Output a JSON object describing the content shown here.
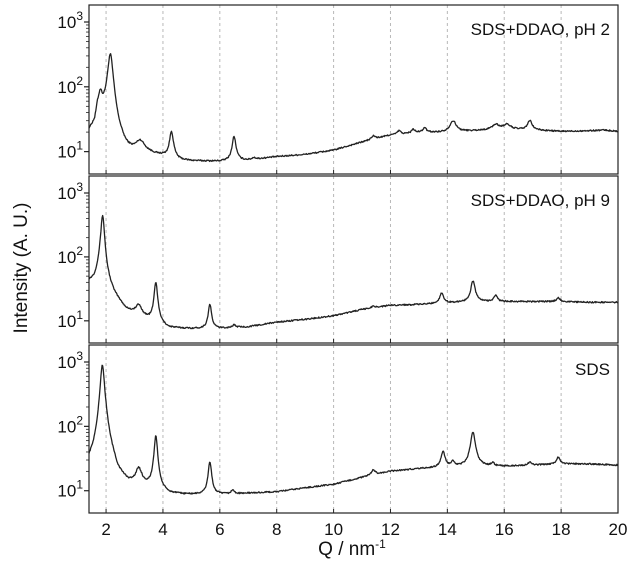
{
  "chart_data": {
    "type": "line",
    "xlabel": "Q / nm",
    "xlabel_superscript": "-1",
    "ylabel": "Intensity (A. U.)",
    "xlim": [
      1.4,
      20
    ],
    "xticks": [
      "2",
      "4",
      "6",
      "8",
      "10",
      "12",
      "14",
      "16",
      "18",
      "20"
    ],
    "y_scale": "log",
    "ylim": [
      6,
      1000
    ],
    "yticks": [
      {
        "base": "10",
        "exp": "1"
      },
      {
        "base": "10",
        "exp": "2"
      },
      {
        "base": "10",
        "exp": "3"
      }
    ],
    "grid": "vertical dashed at each x tick",
    "line_color": "#222222",
    "grid_color": "#b8b8b8",
    "panels": [
      {
        "label": "SDS+DDAO, pH 2",
        "baseline": [
          [
            1.4,
            18
          ],
          [
            1.6,
            22
          ],
          [
            1.7,
            40
          ],
          [
            2.0,
            30
          ],
          [
            2.4,
            9
          ],
          [
            2.7,
            7.2
          ],
          [
            3.5,
            8.3
          ],
          [
            4.0,
            8
          ],
          [
            4.6,
            7
          ],
          [
            5,
            6.9
          ],
          [
            6,
            6.9
          ],
          [
            7,
            7.3
          ],
          [
            8,
            8.3
          ],
          [
            9,
            9
          ],
          [
            10,
            10.5
          ],
          [
            11,
            14
          ],
          [
            12,
            18
          ],
          [
            13,
            19.5
          ],
          [
            14,
            20
          ],
          [
            15,
            21
          ],
          [
            16,
            22
          ],
          [
            17,
            21.5
          ],
          [
            18,
            20.5
          ],
          [
            19,
            21
          ],
          [
            19.5,
            21.5
          ],
          [
            20,
            20.5
          ]
        ],
        "peaks": [
          {
            "x": 1.8,
            "y": 75,
            "w": 0.07
          },
          {
            "x": 2.15,
            "y": 320,
            "w": 0.09
          },
          {
            "x": 3.2,
            "y": 13,
            "w": 0.18
          },
          {
            "x": 4.3,
            "y": 20,
            "w": 0.07
          },
          {
            "x": 6.5,
            "y": 17,
            "w": 0.07
          },
          {
            "x": 7.2,
            "y": 8,
            "w": 0.06
          },
          {
            "x": 11.4,
            "y": 17.5,
            "w": 0.08
          },
          {
            "x": 12.3,
            "y": 21,
            "w": 0.07
          },
          {
            "x": 12.8,
            "y": 22,
            "w": 0.07
          },
          {
            "x": 13.2,
            "y": 23,
            "w": 0.08
          },
          {
            "x": 14.2,
            "y": 30,
            "w": 0.12
          },
          {
            "x": 15.7,
            "y": 26,
            "w": 0.15
          },
          {
            "x": 16.1,
            "y": 26,
            "w": 0.15
          },
          {
            "x": 16.9,
            "y": 30,
            "w": 0.09
          }
        ]
      },
      {
        "label": "SDS+DDAO, pH 9",
        "baseline": [
          [
            1.4,
            40
          ],
          [
            1.6,
            40
          ],
          [
            1.8,
            60
          ],
          [
            2.0,
            35
          ],
          [
            2.3,
            22
          ],
          [
            2.7,
            14
          ],
          [
            3.5,
            10
          ],
          [
            4.2,
            7.5
          ],
          [
            5,
            7.4
          ],
          [
            6,
            7.5
          ],
          [
            7,
            8
          ],
          [
            8,
            9.5
          ],
          [
            9,
            10.5
          ],
          [
            10,
            12
          ],
          [
            11,
            15
          ],
          [
            12,
            17.5
          ],
          [
            13,
            18
          ],
          [
            14,
            19
          ],
          [
            15,
            20
          ],
          [
            16,
            20
          ],
          [
            17,
            20
          ],
          [
            18,
            20
          ],
          [
            19,
            19.5
          ],
          [
            20,
            19.5
          ]
        ],
        "peaks": [
          {
            "x": 1.88,
            "y": 450,
            "w": 0.06
          },
          {
            "x": 3.15,
            "y": 17,
            "w": 0.12
          },
          {
            "x": 3.75,
            "y": 40,
            "w": 0.06
          },
          {
            "x": 5.65,
            "y": 18,
            "w": 0.06
          },
          {
            "x": 6.5,
            "y": 8.5,
            "w": 0.08
          },
          {
            "x": 11.4,
            "y": 17,
            "w": 0.08
          },
          {
            "x": 13.8,
            "y": 27,
            "w": 0.08
          },
          {
            "x": 14.9,
            "y": 42,
            "w": 0.08
          },
          {
            "x": 15.7,
            "y": 25,
            "w": 0.07
          },
          {
            "x": 17.9,
            "y": 23,
            "w": 0.07
          }
        ]
      },
      {
        "label": "SDS",
        "baseline": [
          [
            1.4,
            20
          ],
          [
            1.6,
            22
          ],
          [
            2.0,
            40
          ],
          [
            2.4,
            12
          ],
          [
            2.8,
            10
          ],
          [
            3.5,
            10
          ],
          [
            4.2,
            8.2
          ],
          [
            5,
            8.3
          ],
          [
            6,
            8.5
          ],
          [
            7,
            9
          ],
          [
            8,
            9.5
          ],
          [
            9,
            11
          ],
          [
            10,
            12.5
          ],
          [
            11,
            16
          ],
          [
            12,
            20
          ],
          [
            13,
            22
          ],
          [
            14,
            23
          ],
          [
            15,
            24
          ],
          [
            16,
            24
          ],
          [
            17,
            25
          ],
          [
            18,
            26
          ],
          [
            19,
            26
          ],
          [
            20,
            25
          ]
        ],
        "peaks": [
          {
            "x": 1.87,
            "y": 900,
            "w": 0.07
          },
          {
            "x": 3.15,
            "y": 20,
            "w": 0.12
          },
          {
            "x": 3.75,
            "y": 70,
            "w": 0.06
          },
          {
            "x": 5.65,
            "y": 28,
            "w": 0.06
          },
          {
            "x": 6.45,
            "y": 10,
            "w": 0.06
          },
          {
            "x": 11.4,
            "y": 21,
            "w": 0.08
          },
          {
            "x": 13.85,
            "y": 40,
            "w": 0.08
          },
          {
            "x": 14.2,
            "y": 28,
            "w": 0.06
          },
          {
            "x": 14.9,
            "y": 80,
            "w": 0.09
          },
          {
            "x": 15.6,
            "y": 27,
            "w": 0.06
          },
          {
            "x": 16.9,
            "y": 28,
            "w": 0.06
          },
          {
            "x": 17.9,
            "y": 33,
            "w": 0.08
          }
        ]
      }
    ]
  }
}
